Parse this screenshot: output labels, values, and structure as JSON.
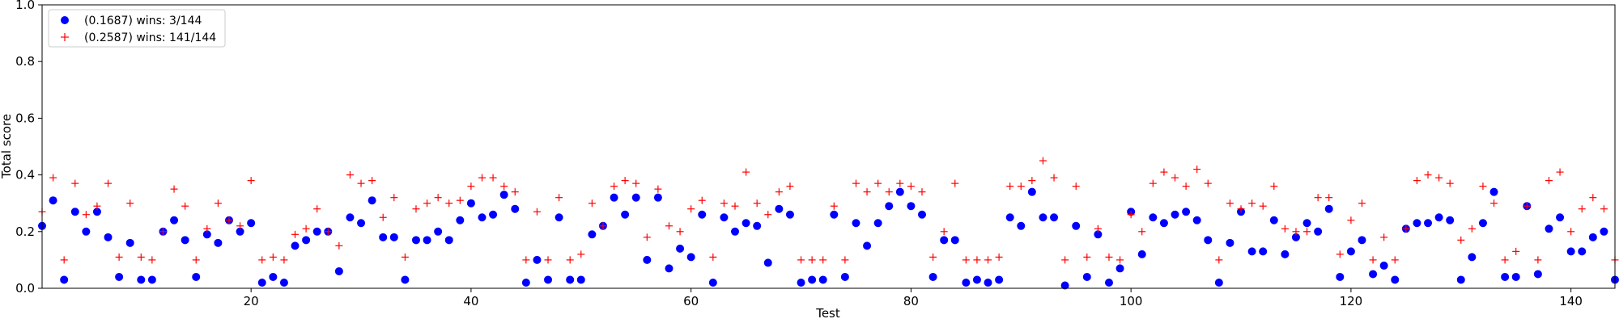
{
  "chart_data": {
    "type": "scatter",
    "title": "",
    "xlabel": "Test",
    "ylabel": "Total score",
    "xlim": [
      1,
      144
    ],
    "ylim": [
      0,
      1.0
    ],
    "xticks": [
      20,
      40,
      60,
      80,
      100,
      120,
      140
    ],
    "yticks": [
      0.0,
      0.2,
      0.4,
      0.6,
      0.8,
      1.0
    ],
    "xtick_labels": [
      "20",
      "40",
      "60",
      "80",
      "100",
      "120",
      "140"
    ],
    "ytick_labels": [
      "0.0",
      "0.2",
      "0.4",
      "0.6",
      "0.8",
      "1.0"
    ],
    "grid": false,
    "legend_position": "top-left",
    "series": [
      {
        "name": "(0.1687) wins: 3/144",
        "marker": "circle",
        "color": "#0000ff",
        "values": [
          0.22,
          0.31,
          0.03,
          0.27,
          0.2,
          0.27,
          0.18,
          0.04,
          0.16,
          0.03,
          0.03,
          0.2,
          0.24,
          0.17,
          0.04,
          0.19,
          0.16,
          0.24,
          0.2,
          0.23,
          0.02,
          0.04,
          0.02,
          0.15,
          0.17,
          0.2,
          0.2,
          0.06,
          0.25,
          0.23,
          0.31,
          0.18,
          0.18,
          0.03,
          0.17,
          0.17,
          0.2,
          0.17,
          0.24,
          0.3,
          0.25,
          0.26,
          0.33,
          0.28,
          0.02,
          0.1,
          0.03,
          0.25,
          0.03,
          0.03,
          0.19,
          0.22,
          0.32,
          0.26,
          0.32,
          0.1,
          0.32,
          0.07,
          0.14,
          0.11,
          0.26,
          0.02,
          0.25,
          0.2,
          0.23,
          0.22,
          0.09,
          0.28,
          0.26,
          0.02,
          0.03,
          0.03,
          0.26,
          0.04,
          0.23,
          0.15,
          0.23,
          0.29,
          0.34,
          0.29,
          0.26,
          0.04,
          0.17,
          0.17,
          0.02,
          0.03,
          0.02,
          0.03,
          0.25,
          0.22,
          0.34,
          0.25,
          0.25,
          0.01,
          0.22,
          0.04,
          0.19,
          0.02,
          0.07,
          0.27,
          0.12,
          0.25,
          0.23,
          0.26,
          0.27,
          0.24,
          0.17,
          0.02,
          0.16,
          0.27,
          0.13,
          0.13,
          0.24,
          0.12,
          0.18,
          0.23,
          0.2,
          0.28,
          0.04,
          0.13,
          0.17,
          0.05,
          0.08,
          0.03,
          0.21,
          0.23,
          0.23,
          0.25,
          0.24,
          0.03,
          0.11,
          0.23,
          0.34,
          0.04,
          0.04,
          0.29,
          0.05,
          0.21,
          0.25,
          0.13,
          0.13,
          0.18,
          0.2,
          0.03
        ]
      },
      {
        "name": "(0.2587) wins: 141/144",
        "marker": "plus",
        "color": "#ff0000",
        "values": [
          0.27,
          0.39,
          0.1,
          0.37,
          0.26,
          0.29,
          0.37,
          0.11,
          0.3,
          0.11,
          0.1,
          0.2,
          0.35,
          0.29,
          0.1,
          0.21,
          0.3,
          0.24,
          0.22,
          0.38,
          0.1,
          0.11,
          0.1,
          0.19,
          0.21,
          0.28,
          0.2,
          0.15,
          0.4,
          0.37,
          0.38,
          0.25,
          0.32,
          0.11,
          0.28,
          0.3,
          0.32,
          0.3,
          0.31,
          0.36,
          0.39,
          0.39,
          0.36,
          0.34,
          0.1,
          0.27,
          0.1,
          0.32,
          0.1,
          0.12,
          0.3,
          0.22,
          0.36,
          0.38,
          0.37,
          0.18,
          0.35,
          0.22,
          0.2,
          0.28,
          0.31,
          0.11,
          0.3,
          0.29,
          0.41,
          0.3,
          0.26,
          0.34,
          0.36,
          0.1,
          0.1,
          0.1,
          0.29,
          0.1,
          0.37,
          0.34,
          0.37,
          0.34,
          0.37,
          0.36,
          0.34,
          0.11,
          0.2,
          0.37,
          0.1,
          0.1,
          0.1,
          0.11,
          0.36,
          0.36,
          0.38,
          0.45,
          0.39,
          0.1,
          0.36,
          0.11,
          0.21,
          0.11,
          0.1,
          0.26,
          0.2,
          0.37,
          0.41,
          0.39,
          0.36,
          0.42,
          0.37,
          0.1,
          0.3,
          0.28,
          0.3,
          0.29,
          0.36,
          0.21,
          0.2,
          0.2,
          0.32,
          0.32,
          0.12,
          0.24,
          0.3,
          0.1,
          0.18,
          0.1,
          0.21,
          0.38,
          0.4,
          0.39,
          0.37,
          0.17,
          0.21,
          0.36,
          0.3,
          0.1,
          0.13,
          0.29,
          0.1,
          0.38,
          0.41,
          0.2,
          0.28,
          0.32,
          0.28,
          0.1
        ]
      }
    ]
  }
}
